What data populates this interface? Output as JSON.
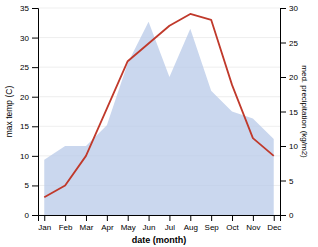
{
  "chart_data": {
    "type": "line",
    "categories": [
      "Jan",
      "Feb",
      "Mar",
      "Apr",
      "May",
      "Jun",
      "Jul",
      "Aug",
      "Sep",
      "Oct",
      "Nov",
      "Dec"
    ],
    "series": [
      {
        "type": "line",
        "color": "#c0392b",
        "values": [
          3,
          5,
          10,
          18,
          26,
          29,
          32,
          34,
          33,
          22,
          13,
          10
        ]
      },
      {
        "type": "area",
        "axis": "y2",
        "color": "#b8c9e8",
        "values": [
          8,
          10,
          10,
          13,
          22,
          28,
          20,
          27,
          18,
          15,
          14,
          11
        ]
      }
    ],
    "xlabel": "date (month)",
    "ylabel": "max temp (C)",
    "y2label": "med. precipitation (kg/m2)",
    "ylim": [
      0,
      35
    ],
    "yticks": [
      0,
      5,
      10,
      15,
      20,
      25,
      30,
      35
    ],
    "y2lim": [
      0,
      30
    ],
    "y2ticks": [
      0,
      5,
      10,
      15,
      20,
      25,
      30
    ],
    "grid": true
  }
}
